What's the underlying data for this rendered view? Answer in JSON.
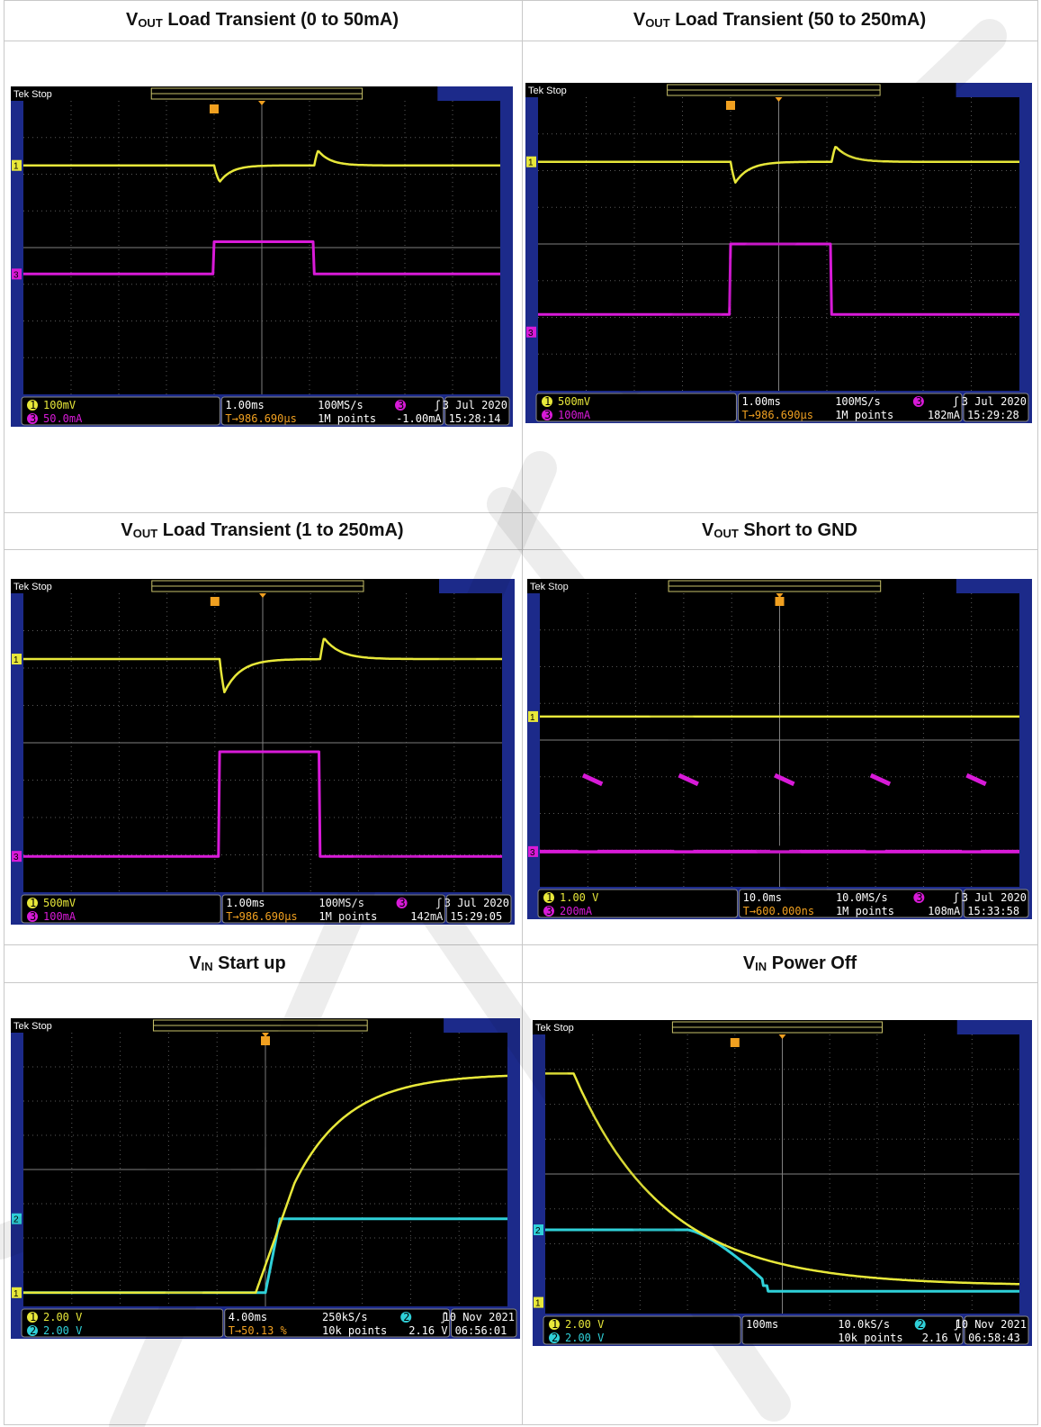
{
  "cells": [
    {
      "title_pre": "V",
      "title_sub": "OUT",
      "title_post": " Load Transient (0 to 50mA)",
      "scope": {
        "brand": "Tek",
        "state": "Stop",
        "ch1": "100mV",
        "ch3": "50.0mA",
        "timebase": "1.00ms",
        "trig_delay": "986.690µs",
        "rate": "100MS/s",
        "points": "1M points",
        "trig_level": "-1.00mA",
        "date": "3 Jul  2020",
        "time": "15:28:14",
        "trig_ch": "3",
        "second_ch": "3",
        "ch1_color": "#e8e83a",
        "ch2_color": "#d81ad8"
      }
    },
    {
      "title_pre": "V",
      "title_sub": "OUT",
      "title_post": " Load Transient (50 to 250mA)",
      "scope": {
        "brand": "Tek",
        "state": "Stop",
        "ch1": "500mV",
        "ch3": "100mA",
        "timebase": "1.00ms",
        "trig_delay": "986.690µs",
        "rate": "100MS/s",
        "points": "1M points",
        "trig_level": "182mA",
        "date": "3 Jul  2020",
        "time": "15:29:28",
        "trig_ch": "3",
        "second_ch": "3",
        "ch1_color": "#e8e83a",
        "ch2_color": "#d81ad8"
      }
    },
    {
      "title_pre": "V",
      "title_sub": "OUT",
      "title_post": " Load Transient (1 to 250mA)",
      "scope": {
        "brand": "Tek",
        "state": "Stop",
        "ch1": "500mV",
        "ch3": "100mA",
        "timebase": "1.00ms",
        "trig_delay": "986.690µs",
        "rate": "100MS/s",
        "points": "1M points",
        "trig_level": "142mA",
        "date": "3 Jul  2020",
        "time": "15:29:05",
        "trig_ch": "3",
        "second_ch": "3",
        "ch1_color": "#e8e83a",
        "ch2_color": "#d81ad8"
      }
    },
    {
      "title_pre": "V",
      "title_sub": "OUT",
      "title_post": " Short to GND",
      "scope": {
        "brand": "Tek",
        "state": "Stop",
        "ch1": "1.00 V",
        "ch3": "200mA",
        "timebase": "10.0ms",
        "trig_delay": "600.000ns",
        "rate": "10.0MS/s",
        "points": "1M points",
        "trig_level": "108mA",
        "date": "3 Jul  2020",
        "time": "15:33:58",
        "trig_ch": "3",
        "second_ch": "3",
        "ch1_color": "#e8e83a",
        "ch2_color": "#d81ad8"
      }
    },
    {
      "title_pre": "V",
      "title_sub": "IN",
      "title_post": " Start up",
      "scope": {
        "brand": "Tek",
        "state": "Stop",
        "ch1": "2.00 V",
        "ch3": "2.00 V",
        "timebase": "4.00ms",
        "trig_delay": "50.13 %",
        "rate": "250kS/s",
        "points": "10k points",
        "trig_level": "2.16 V",
        "date": "10 Nov 2021",
        "time": "06:56:01",
        "trig_ch": "2",
        "second_ch": "2",
        "ch1_color": "#e8e83a",
        "ch2_color": "#2fd0d8"
      }
    },
    {
      "title_pre": "V",
      "title_sub": "IN",
      "title_post": " Power Off",
      "scope": {
        "brand": "Tek",
        "state": "Stop",
        "ch1": "2.00 V",
        "ch3": "2.00 V",
        "timebase": "100ms",
        "trig_delay": "",
        "rate": "10.0kS/s",
        "points": "10k points",
        "trig_level": "2.16 V",
        "date": "10 Nov 2021",
        "time": "06:58:43",
        "trig_ch": "2",
        "second_ch": "2",
        "ch1_color": "#e8e83a",
        "ch2_color": "#2fd0d8"
      }
    }
  ]
}
